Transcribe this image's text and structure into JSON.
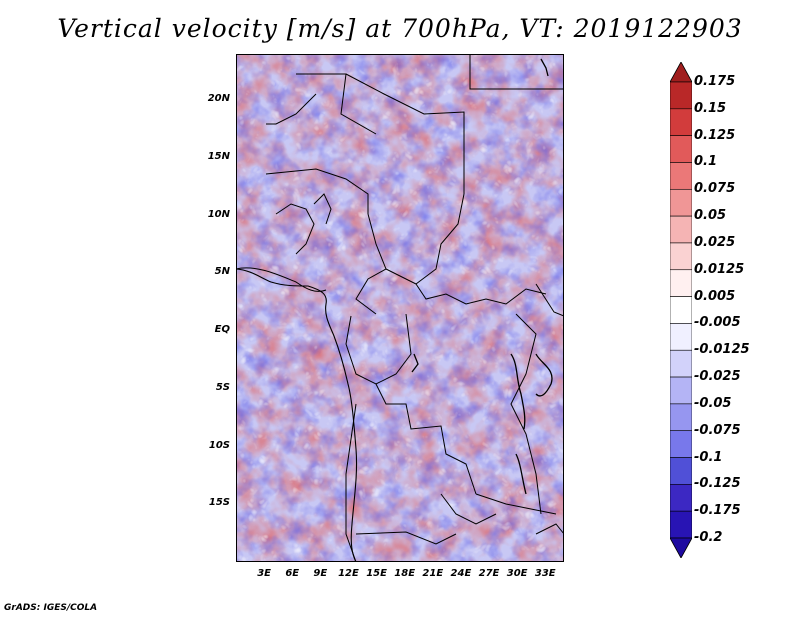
{
  "title": "Vertical velocity [m/s] at 700hPa, VT: 2019122903",
  "map": {
    "lat_range": [
      -20,
      24
    ],
    "lon_range": [
      0,
      35
    ],
    "lat_labels": [
      {
        "lat": 20,
        "text": "20N"
      },
      {
        "lat": 15,
        "text": "15N"
      },
      {
        "lat": 10,
        "text": "10N"
      },
      {
        "lat": 5,
        "text": "5N"
      },
      {
        "lat": 0,
        "text": "EQ"
      },
      {
        "lat": -5,
        "text": "5S"
      },
      {
        "lat": -10,
        "text": "10S"
      },
      {
        "lat": -15,
        "text": "15S"
      }
    ],
    "lon_labels": [
      {
        "lon": 3,
        "text": "3E"
      },
      {
        "lon": 6,
        "text": "6E"
      },
      {
        "lon": 9,
        "text": "9E"
      },
      {
        "lon": 12,
        "text": "12E"
      },
      {
        "lon": 15,
        "text": "15E"
      },
      {
        "lon": 18,
        "text": "18E"
      },
      {
        "lon": 21,
        "text": "21E"
      },
      {
        "lon": 24,
        "text": "24E"
      },
      {
        "lon": 27,
        "text": "27E"
      },
      {
        "lon": 30,
        "text": "30E"
      },
      {
        "lon": 33,
        "text": "33E"
      }
    ]
  },
  "colorbar": {
    "levels": [
      "0.175",
      "0.15",
      "0.125",
      "0.1",
      "0.075",
      "0.05",
      "0.025",
      "0.0125",
      "0.005",
      "-0.005",
      "-0.0125",
      "-0.025",
      "-0.05",
      "-0.075",
      "-0.1",
      "-0.125",
      "-0.175",
      "-0.2"
    ],
    "colors": [
      "#a01e1e",
      "#b92828",
      "#d23c3c",
      "#e15a5a",
      "#eb7878",
      "#f09696",
      "#f5b4b4",
      "#fad2d2",
      "#fff0f0",
      "#ffffff",
      "#f0f0ff",
      "#d2d2fa",
      "#b4b4f5",
      "#9696f0",
      "#7878eb",
      "#5050d7",
      "#3c28c3",
      "#2814b4",
      "#1e0aa0"
    ]
  },
  "footer": "GrADS: IGES/COLA"
}
